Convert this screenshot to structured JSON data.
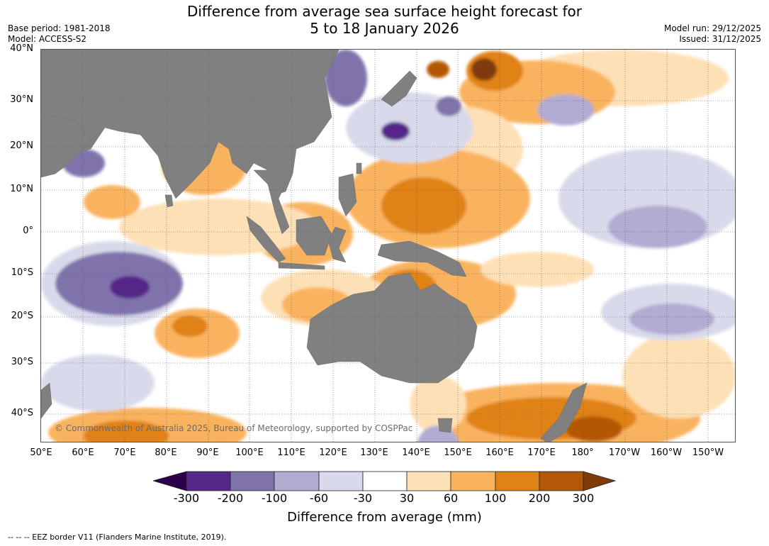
{
  "title": {
    "line1": "Difference from average sea surface height forecast for",
    "line2": "5 to 18 January 2026"
  },
  "meta": {
    "base_period": "Base period: 1981-2018",
    "model": "Model: ACCESS-S2",
    "model_run": "Model run: 29/12/2025",
    "issued": "Issued: 31/12/2025"
  },
  "map": {
    "latitude_labels": [
      "40°N",
      "30°N",
      "20°N",
      "10°N",
      "0°",
      "10°S",
      "20°S",
      "30°S",
      "40°S"
    ],
    "longitude_labels": [
      "50°E",
      "60°E",
      "70°E",
      "80°E",
      "90°E",
      "100°E",
      "110°E",
      "120°E",
      "130°E",
      "140°E",
      "150°E",
      "160°E",
      "170°E",
      "180°",
      "170°W",
      "160°W",
      "150°W"
    ],
    "copyright": "© Commonwealth of Australia 2025, Bureau of Meteorology, supported by COSPPac",
    "land_color": "#808080"
  },
  "colorbar": {
    "ticks": [
      "-300",
      "-200",
      "-100",
      "-60",
      "-30",
      "30",
      "60",
      "100",
      "200",
      "300"
    ],
    "colors": [
      "#2d004b",
      "#542788",
      "#8073ac",
      "#b2abd2",
      "#d8daeb",
      "#ffffff",
      "#fee0b6",
      "#f9b35f",
      "#e08214",
      "#b35806",
      "#7f3b08"
    ],
    "label": "Difference from average (mm)"
  },
  "footnote": "--  --  -- EEZ border V11 (Flanders Marine Institute, 2019)."
}
